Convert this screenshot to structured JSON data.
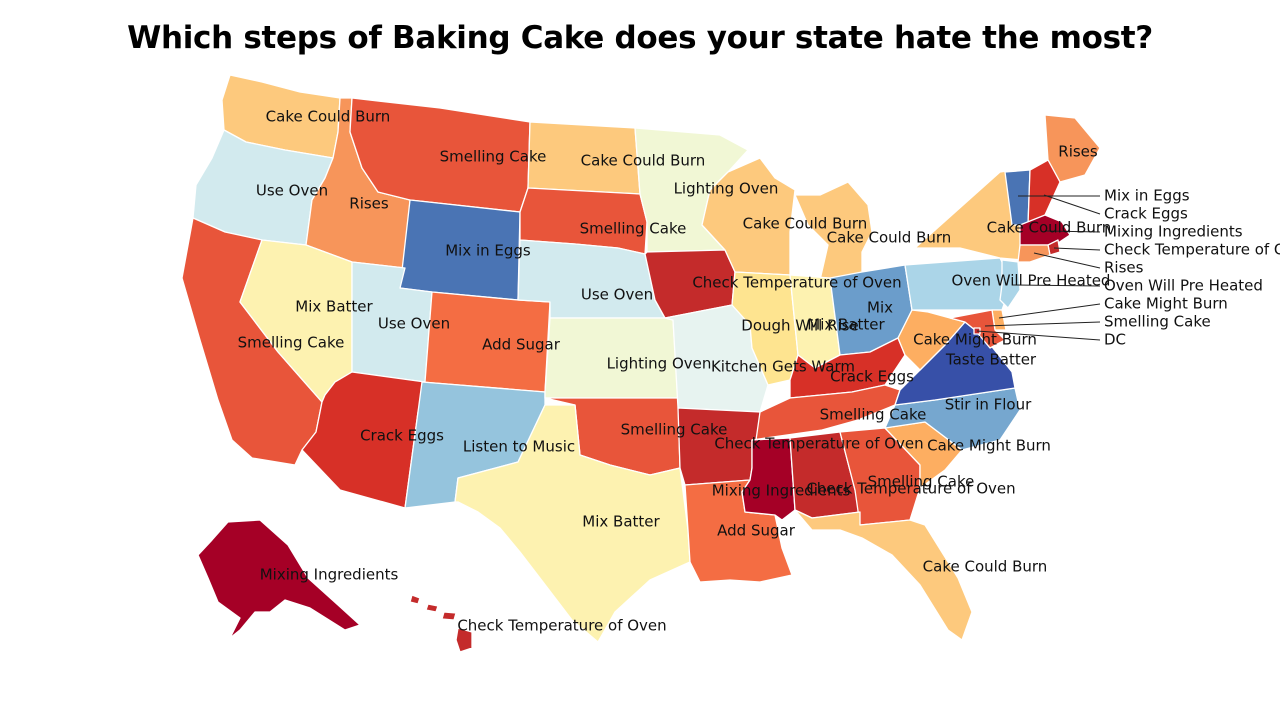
{
  "title": "Which steps of Baking Cake does your state hate the most?",
  "colors": {
    "Cake Could Burn": "#fdc97d",
    "Smelling Cake": "#e8553a",
    "Use Oven": "#d2eaee",
    "Rises": "#f7955a",
    "Mix in Eggs": "#4a74b4",
    "Lighting Oven": "#f1f7d5",
    "Check Temperature of Oven": "#c42b2b",
    "Mixing Ingredients": "#a50026",
    "Crack Eggs": "#d73027",
    "Mix Batter": "#fdf2b0",
    "Add Sugar": "#f46d43",
    "Listen to Music": "#95c4dd",
    "Dough Will Rise": "#fee490",
    "Kitchen Gets Warm": "#e7f3f0",
    "Oven Will Pre Heated": "#abd5e8",
    "Taste Batter": "#3750a8",
    "Stir in Flour": "#76a7cf",
    "Cake Might Burn": "#fdae61",
    "Mix": "#6b9dcb"
  },
  "states": [
    {
      "code": "WA",
      "value": "Cake Could Burn"
    },
    {
      "code": "OR",
      "value": "Use Oven"
    },
    {
      "code": "CA",
      "value": "Smelling Cake"
    },
    {
      "code": "ID",
      "value": "Rises"
    },
    {
      "code": "NV",
      "value": "Mix Batter"
    },
    {
      "code": "MT",
      "value": "Smelling Cake"
    },
    {
      "code": "WY",
      "value": "Mix in Eggs"
    },
    {
      "code": "UT",
      "value": "Use Oven"
    },
    {
      "code": "AZ",
      "value": "Crack Eggs"
    },
    {
      "code": "CO",
      "value": "Add Sugar"
    },
    {
      "code": "NM",
      "value": "Listen to Music"
    },
    {
      "code": "ND",
      "value": "Cake Could Burn"
    },
    {
      "code": "SD",
      "value": "Smelling Cake"
    },
    {
      "code": "NE",
      "value": "Use Oven"
    },
    {
      "code": "KS",
      "value": "Lighting Oven"
    },
    {
      "code": "OK",
      "value": "Smelling Cake"
    },
    {
      "code": "TX",
      "value": "Mix Batter"
    },
    {
      "code": "MN",
      "value": "Lighting Oven"
    },
    {
      "code": "IA",
      "value": "Check Temperature of Oven"
    },
    {
      "code": "MO",
      "value": "Kitchen Gets Warm"
    },
    {
      "code": "AR",
      "value": "Check Temperature of Oven"
    },
    {
      "code": "LA",
      "value": "Add Sugar"
    },
    {
      "code": "WI",
      "value": "Cake Could Burn"
    },
    {
      "code": "MI",
      "value": "Cake Could Burn"
    },
    {
      "code": "IL",
      "value": "Dough Will Rise"
    },
    {
      "code": "IN",
      "value": "Mix Batter"
    },
    {
      "code": "OH",
      "value": "Mix"
    },
    {
      "code": "KY",
      "value": "Crack Eggs"
    },
    {
      "code": "TN",
      "value": "Smelling Cake"
    },
    {
      "code": "MS",
      "value": "Mixing Ingredients"
    },
    {
      "code": "AL",
      "value": "Check Temperature of Oven"
    },
    {
      "code": "GA",
      "value": "Smelling Cake"
    },
    {
      "code": "FL",
      "value": "Cake Could Burn"
    },
    {
      "code": "SC",
      "value": "Cake Might Burn"
    },
    {
      "code": "NC",
      "value": "Stir in Flour"
    },
    {
      "code": "VA",
      "value": "Taste Batter"
    },
    {
      "code": "WV",
      "value": "Cake Might Burn"
    },
    {
      "code": "PA",
      "value": "Oven Will Pre Heated"
    },
    {
      "code": "NY",
      "value": "Cake Could Burn"
    },
    {
      "code": "ME",
      "value": "Rises"
    },
    {
      "code": "AK",
      "value": "Mixing Ingredients"
    },
    {
      "code": "HI",
      "value": "Check Temperature of Oven"
    },
    {
      "code": "VT",
      "value": "Mix in Eggs"
    },
    {
      "code": "NH",
      "value": "Crack Eggs"
    },
    {
      "code": "MA",
      "value": "Mixing Ingredients"
    },
    {
      "code": "RI",
      "value": "Check Temperature of Oven"
    },
    {
      "code": "CT",
      "value": "Rises"
    },
    {
      "code": "NJ",
      "value": "Oven Will Pre Heated"
    },
    {
      "code": "DE",
      "value": "Cake Might Burn"
    },
    {
      "code": "MD",
      "value": "Smelling Cake"
    },
    {
      "code": "DC",
      "value": "Check Temperature of Oven"
    }
  ],
  "callouts": [
    {
      "code": "VT",
      "text": "Mix in Eggs"
    },
    {
      "code": "NH",
      "text": "Crack Eggs"
    },
    {
      "code": "MA",
      "text": "Mixing Ingredients"
    },
    {
      "code": "RI",
      "text": "Check Temperature of Oven"
    },
    {
      "code": "CT",
      "text": "Rises"
    },
    {
      "code": "NJ",
      "text": "Oven Will Pre Heated"
    },
    {
      "code": "DE",
      "text": "Cake Might Burn"
    },
    {
      "code": "MD",
      "text": "Smelling Cake"
    },
    {
      "code": "DC",
      "text": "DC"
    }
  ]
}
